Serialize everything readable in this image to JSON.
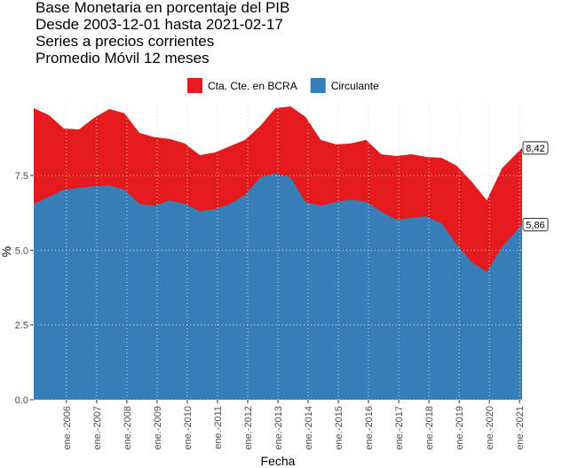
{
  "chart_data": {
    "type": "area",
    "title_lines": [
      "Base Monetaria en porcentaje del PIB",
      "Desde 2003-12-01 hasta 2021-02-17",
      "Series a precios corrientes",
      "Promedio Móvil 12 meses"
    ],
    "x_label": "Fecha",
    "y_label": "%",
    "x": [
      "2004-12",
      "2005-06",
      "2005-12",
      "2006-06",
      "2006-12",
      "2007-06",
      "2007-12",
      "2008-06",
      "2008-12",
      "2009-06",
      "2009-12",
      "2010-06",
      "2010-12",
      "2011-06",
      "2011-12",
      "2012-06",
      "2012-12",
      "2013-06",
      "2013-12",
      "2014-06",
      "2014-12",
      "2015-06",
      "2015-12",
      "2016-06",
      "2016-12",
      "2017-06",
      "2017-12",
      "2018-06",
      "2018-12",
      "2019-06",
      "2019-12",
      "2020-06",
      "2021-02"
    ],
    "series": [
      {
        "name": "Cta. Cte. en BCRA",
        "color": "#e41a1c",
        "values": [
          9.75,
          9.52,
          9.07,
          9.04,
          9.43,
          9.72,
          9.58,
          8.92,
          8.78,
          8.72,
          8.57,
          8.18,
          8.27,
          8.48,
          8.69,
          9.16,
          9.75,
          9.81,
          9.46,
          8.69,
          8.54,
          8.57,
          8.69,
          8.21,
          8.15,
          8.21,
          8.12,
          8.09,
          7.83,
          7.29,
          6.67,
          7.74,
          8.42
        ],
        "value_labels": {
          "32": "8,42"
        }
      },
      {
        "name": "Circulante",
        "color": "#377eb8",
        "values": [
          6.55,
          6.79,
          7.03,
          7.09,
          7.14,
          7.17,
          7.03,
          6.55,
          6.49,
          6.67,
          6.55,
          6.31,
          6.37,
          6.55,
          6.85,
          7.44,
          7.56,
          7.44,
          6.61,
          6.49,
          6.61,
          6.7,
          6.62,
          6.3,
          6.02,
          6.08,
          6.14,
          5.9,
          5.2,
          4.6,
          4.27,
          5.1,
          5.86
        ],
        "value_labels": {
          "32": "5,86"
        }
      }
    ],
    "xlim": [
      "2004-12",
      "2021-02"
    ],
    "xticks": [
      {
        "value": "2006-01",
        "label": "ene.-2006"
      },
      {
        "value": "2007-01",
        "label": "ene.-2007"
      },
      {
        "value": "2008-01",
        "label": "ene.-2008"
      },
      {
        "value": "2009-01",
        "label": "ene.-2009"
      },
      {
        "value": "2010-01",
        "label": "ene.-2010"
      },
      {
        "value": "2011-01",
        "label": "ene.-2011"
      },
      {
        "value": "2012-01",
        "label": "ene.-2012"
      },
      {
        "value": "2013-01",
        "label": "ene.-2013"
      },
      {
        "value": "2014-01",
        "label": "ene.-2014"
      },
      {
        "value": "2015-01",
        "label": "ene.-2015"
      },
      {
        "value": "2016-01",
        "label": "ene.-2016"
      },
      {
        "value": "2017-01",
        "label": "ene.-2017"
      },
      {
        "value": "2018-01",
        "label": "ene.-2018"
      },
      {
        "value": "2019-01",
        "label": "ene.-2019"
      },
      {
        "value": "2020-01",
        "label": "ene.-2020"
      },
      {
        "value": "2021-01",
        "label": "ene.-2021"
      }
    ],
    "ylim": [
      0,
      9.87
    ],
    "yticks": [
      {
        "value": 0,
        "label": "0.0"
      },
      {
        "value": 2.5,
        "label": "2.5"
      },
      {
        "value": 5,
        "label": "5.0"
      },
      {
        "value": 7.5,
        "label": "7.5"
      }
    ],
    "grid": true,
    "legend": "top"
  }
}
